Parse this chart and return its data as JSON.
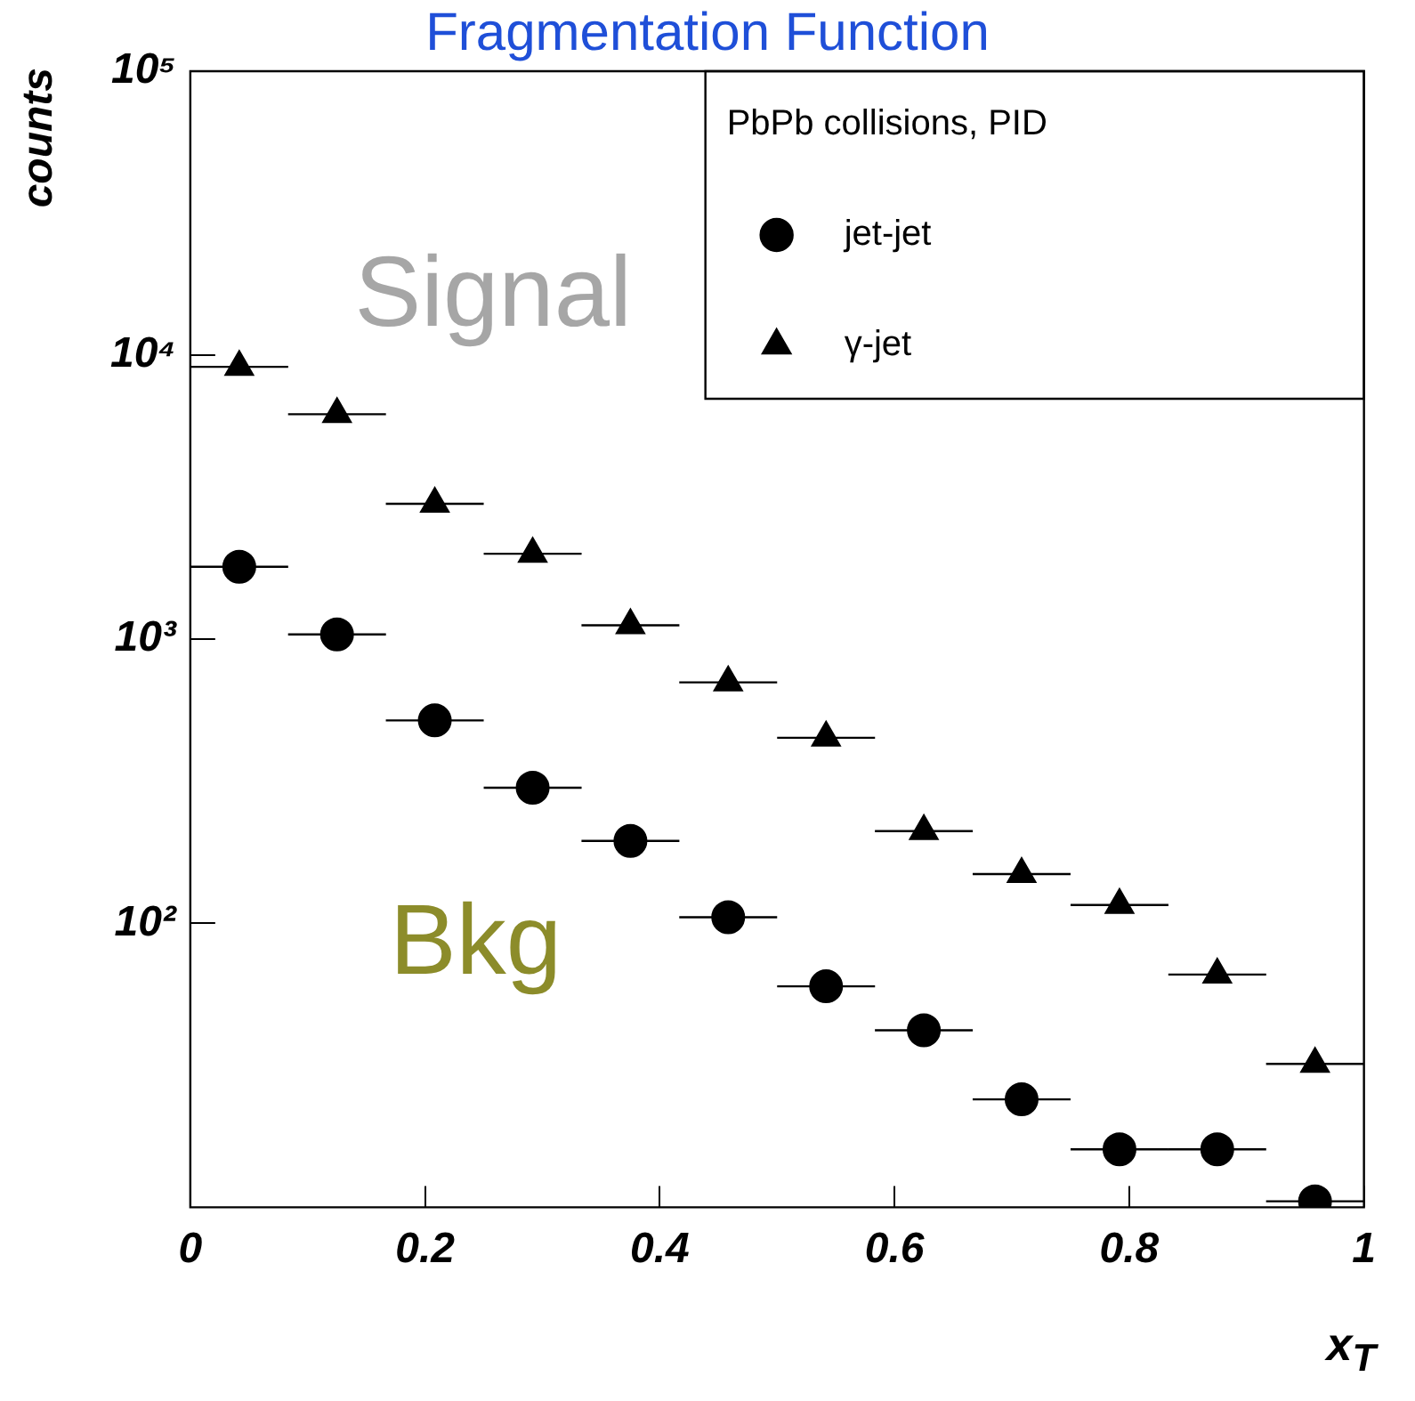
{
  "chart_data": {
    "type": "scatter",
    "title": "Fragmentation Function",
    "xlabel": "x$_{T}$",
    "ylabel": "counts",
    "legend_title": "PbPb collisions, PID",
    "x": [
      0.0417,
      0.125,
      0.2083,
      0.2917,
      0.375,
      0.4583,
      0.5417,
      0.625,
      0.7083,
      0.7917,
      0.875,
      0.9583
    ],
    "series": [
      {
        "name": "jet-jet",
        "color": "#000000",
        "marker": "circle",
        "values": [
          1800,
          1040,
          518,
          300,
          195,
          105,
          60,
          42,
          24,
          16,
          16,
          10.5
        ],
        "xerrors": [
          0.0417,
          0.0417,
          0.0417,
          0.0417,
          0.0417,
          0.0417,
          0.0417,
          0.0417,
          0.0417,
          0.0417,
          0.0417,
          0.0417
        ]
      },
      {
        "name": "γ-jet",
        "color": "#000000",
        "marker": "triangle",
        "values": [
          9100,
          6200,
          3000,
          2000,
          1120,
          705,
          450,
          211,
          149,
          116,
          66,
          32
        ],
        "xerrors": [
          0.0417,
          0.0417,
          0.0417,
          0.0417,
          0.0417,
          0.0417,
          0.0417,
          0.0417,
          0.0417,
          0.0417,
          0.0417,
          0.0417
        ]
      }
    ],
    "xlim": [
      0,
      1
    ],
    "xticks": [
      0,
      0.2,
      0.4,
      0.6,
      0.8,
      1
    ],
    "ylim": [
      10,
      100000
    ],
    "yticks": [
      {
        "value": 100,
        "label": "10²"
      },
      {
        "value": 1000,
        "label": "10³"
      },
      {
        "value": 10000,
        "label": "10⁴"
      },
      {
        "value": 100000,
        "label": "10⁵"
      }
    ],
    "log": "y",
    "grid": false,
    "legend": "top right",
    "annotations": [
      "Signal",
      "Bkg"
    ]
  }
}
